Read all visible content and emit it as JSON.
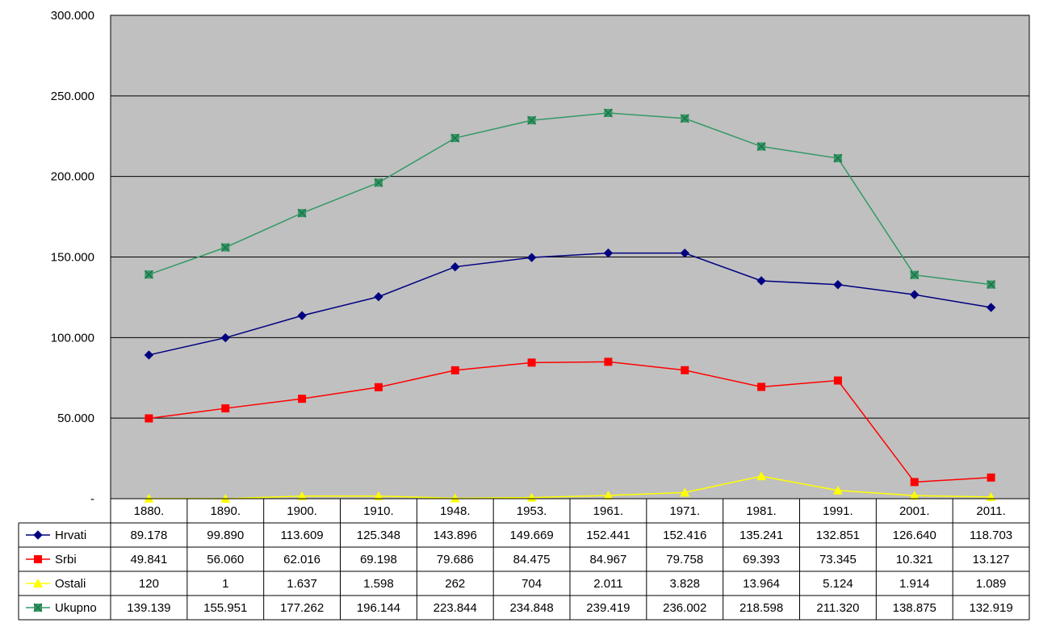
{
  "chart_data": {
    "type": "line",
    "categories": [
      "1880.",
      "1890.",
      "1900.",
      "1910.",
      "1948.",
      "1953.",
      "1961.",
      "1971.",
      "1981.",
      "1991.",
      "2001.",
      "2011."
    ],
    "ylim": [
      0,
      300000
    ],
    "ytick_values": [
      0,
      50000,
      100000,
      150000,
      200000,
      250000,
      300000
    ],
    "ytick_labels": [
      "-",
      "50.000",
      "100.000",
      "150.000",
      "200.000",
      "250.000",
      "300.000"
    ],
    "grid": true,
    "legend": "data-table",
    "series": [
      {
        "name": "Hrvati",
        "color": "#000080",
        "marker": "diamond",
        "values": [
          89178,
          99890,
          113609,
          125348,
          143896,
          149669,
          152441,
          152416,
          135241,
          132851,
          126640,
          118703
        ],
        "labels": [
          "89.178",
          "99.890",
          "113.609",
          "125.348",
          "143.896",
          "149.669",
          "152.441",
          "152.416",
          "135.241",
          "132.851",
          "126.640",
          "118.703"
        ]
      },
      {
        "name": "Srbi",
        "color": "#ff0000",
        "marker": "square",
        "values": [
          49841,
          56060,
          62016,
          69198,
          79686,
          84475,
          84967,
          79758,
          69393,
          73345,
          10321,
          13127
        ],
        "labels": [
          "49.841",
          "56.060",
          "62.016",
          "69.198",
          "79.686",
          "84.475",
          "84.967",
          "79.758",
          "69.393",
          "73.345",
          "10.321",
          "13.127"
        ]
      },
      {
        "name": "Ostali",
        "color": "#ffff00",
        "marker": "triangle",
        "values": [
          120,
          1,
          1637,
          1598,
          262,
          704,
          2011,
          3828,
          13964,
          5124,
          1914,
          1089
        ],
        "labels": [
          "120",
          "1",
          "1.637",
          "1.598",
          "262",
          "704",
          "2.011",
          "3.828",
          "13.964",
          "5.124",
          "1.914",
          "1.089"
        ]
      },
      {
        "name": "Ukupno",
        "color": "#339966",
        "marker": "square-x",
        "values": [
          139139,
          155951,
          177262,
          196144,
          223844,
          234848,
          239419,
          236002,
          218598,
          211320,
          138875,
          132919
        ],
        "labels": [
          "139.139",
          "155.951",
          "177.262",
          "196.144",
          "223.844",
          "234.848",
          "239.419",
          "236.002",
          "218.598",
          "211.320",
          "138.875",
          "132.919"
        ]
      }
    ],
    "colors": {
      "plot_background": "#c0c0c0",
      "gridline": "#000000"
    }
  }
}
